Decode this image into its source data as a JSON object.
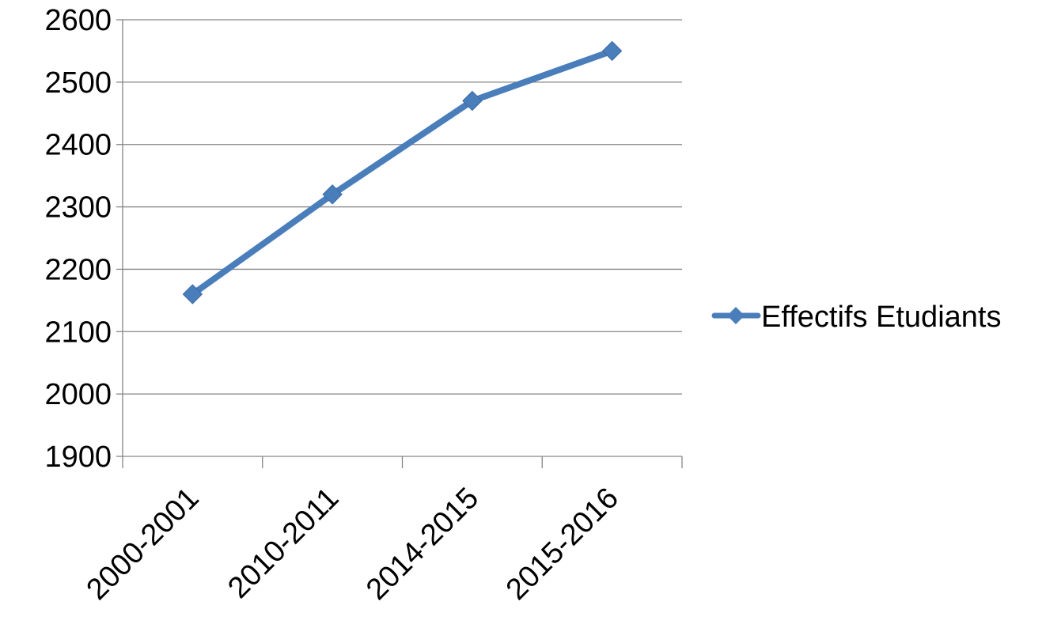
{
  "chart_data": {
    "type": "line",
    "title": "",
    "xlabel": "",
    "ylabel": "",
    "categories": [
      "2000-2001",
      "2010-2011",
      "2014-2015",
      "2015-2016"
    ],
    "series": [
      {
        "name": "Effectifs Etudiants",
        "values": [
          2160,
          2320,
          2470,
          2550
        ],
        "color": "#4a7ebb"
      }
    ],
    "ylim": [
      1900,
      2600
    ],
    "yticks": [
      1900,
      2000,
      2100,
      2200,
      2300,
      2400,
      2500,
      2600
    ],
    "grid": true,
    "legend_position": "right",
    "marker": "diamond"
  }
}
